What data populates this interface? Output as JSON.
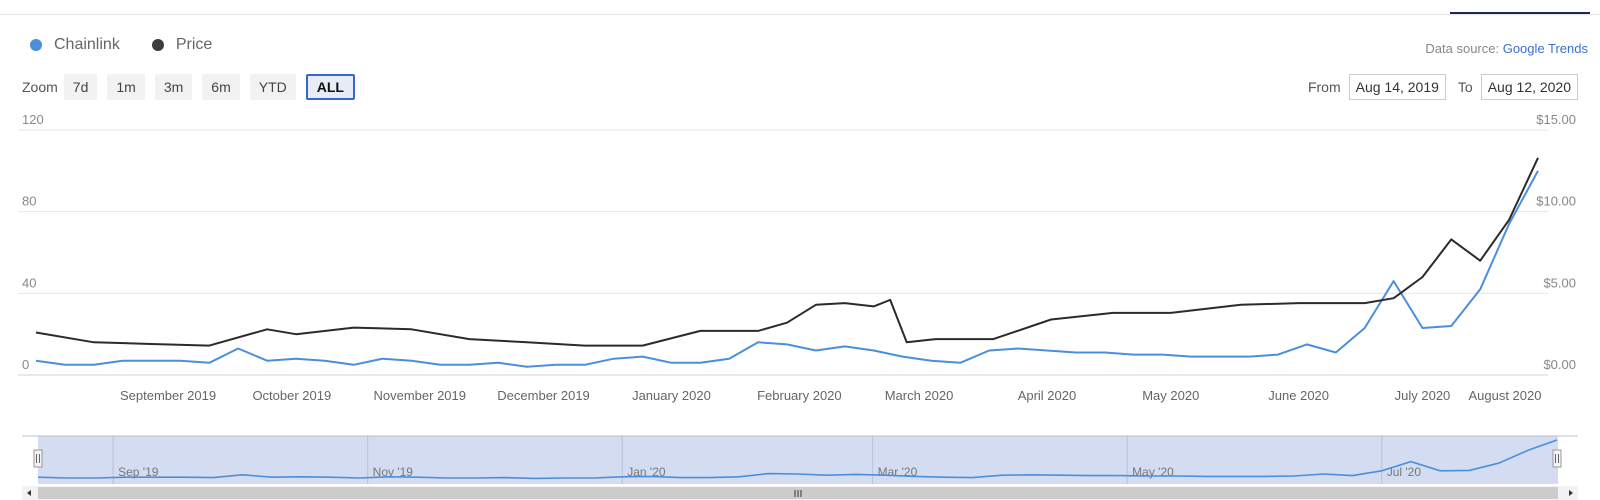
{
  "legend": {
    "chainlink_label": "Chainlink",
    "price_label": "Price"
  },
  "source": {
    "prefix": "Data source: ",
    "name": "Google Trends"
  },
  "zoom": {
    "label": "Zoom",
    "options": [
      "7d",
      "1m",
      "3m",
      "6m",
      "YTD",
      "ALL"
    ],
    "active": "ALL"
  },
  "range": {
    "from_label": "From",
    "from_value": "Aug 14, 2019",
    "to_label": "To",
    "to_value": "Aug 12, 2020"
  },
  "colors": {
    "chainlink": "#4a8fdb",
    "price": "#2b2b2b",
    "navigator_bg": "#d3dcf0"
  },
  "navigator": {
    "labels": [
      "Sep '19",
      "Nov '19",
      "Jan '20",
      "Mar '20",
      "May '20",
      "Jul '20"
    ]
  },
  "chart_data": {
    "type": "line",
    "title": "",
    "x_start": "2019-08-14",
    "x_end": "2020-08-12",
    "x_ticks": [
      "September 2019",
      "October 2019",
      "November 2019",
      "December 2019",
      "January 2020",
      "February 2020",
      "March 2020",
      "April 2020",
      "May 2020",
      "June 2020",
      "July 2020",
      "August 2020"
    ],
    "y_left": {
      "ylim": [
        0,
        120
      ],
      "ticks": [
        "0",
        "40",
        "80",
        "120"
      ]
    },
    "y_right": {
      "ylim": [
        0,
        15
      ],
      "ticks": [
        "$0.00",
        "$5.00",
        "$10.00",
        "$15.00"
      ]
    },
    "series": [
      {
        "name": "Chainlink",
        "axis": "left",
        "x": [
          "2019-08-14",
          "2019-08-21",
          "2019-08-28",
          "2019-09-04",
          "2019-09-11",
          "2019-09-18",
          "2019-09-25",
          "2019-10-02",
          "2019-10-09",
          "2019-10-16",
          "2019-10-23",
          "2019-10-30",
          "2019-11-06",
          "2019-11-13",
          "2019-11-20",
          "2019-11-27",
          "2019-12-04",
          "2019-12-11",
          "2019-12-18",
          "2019-12-25",
          "2020-01-01",
          "2020-01-08",
          "2020-01-15",
          "2020-01-22",
          "2020-01-29",
          "2020-02-05",
          "2020-02-12",
          "2020-02-19",
          "2020-02-26",
          "2020-03-04",
          "2020-03-11",
          "2020-03-18",
          "2020-03-25",
          "2020-04-01",
          "2020-04-08",
          "2020-04-15",
          "2020-04-22",
          "2020-04-29",
          "2020-05-06",
          "2020-05-13",
          "2020-05-20",
          "2020-05-27",
          "2020-06-03",
          "2020-06-10",
          "2020-06-17",
          "2020-06-24",
          "2020-07-01",
          "2020-07-08",
          "2020-07-15",
          "2020-07-22",
          "2020-07-29",
          "2020-08-05",
          "2020-08-12"
        ],
        "values": [
          7,
          5,
          5,
          7,
          7,
          7,
          6,
          13,
          7,
          8,
          7,
          5,
          8,
          7,
          5,
          5,
          6,
          4,
          5,
          5,
          8,
          9,
          6,
          6,
          8,
          16,
          15,
          12,
          14,
          12,
          9,
          7,
          6,
          12,
          13,
          12,
          11,
          11,
          10,
          10,
          9,
          9,
          9,
          10,
          15,
          11,
          23,
          46,
          23,
          24,
          42,
          74,
          100
        ]
      },
      {
        "name": "Price",
        "axis": "right",
        "x": [
          "2019-08-14",
          "2019-08-28",
          "2019-09-11",
          "2019-09-25",
          "2019-10-09",
          "2019-10-16",
          "2019-10-30",
          "2019-11-13",
          "2019-11-27",
          "2019-12-11",
          "2019-12-25",
          "2020-01-08",
          "2020-01-22",
          "2020-02-05",
          "2020-02-12",
          "2020-02-19",
          "2020-02-26",
          "2020-03-04",
          "2020-03-08",
          "2020-03-12",
          "2020-03-19",
          "2020-04-02",
          "2020-04-16",
          "2020-05-01",
          "2020-05-15",
          "2020-06-01",
          "2020-06-15",
          "2020-07-01",
          "2020-07-08",
          "2020-07-15",
          "2020-07-22",
          "2020-07-29",
          "2020-08-05",
          "2020-08-12"
        ],
        "values": [
          2.6,
          2.0,
          1.9,
          1.8,
          2.8,
          2.5,
          2.9,
          2.8,
          2.2,
          2.0,
          1.8,
          1.8,
          2.7,
          2.7,
          3.2,
          4.3,
          4.4,
          4.2,
          4.6,
          2.0,
          2.2,
          2.2,
          3.4,
          3.8,
          3.8,
          4.3,
          4.4,
          4.4,
          4.7,
          6.0,
          8.3,
          7.0,
          9.5,
          13.3
        ]
      }
    ]
  }
}
